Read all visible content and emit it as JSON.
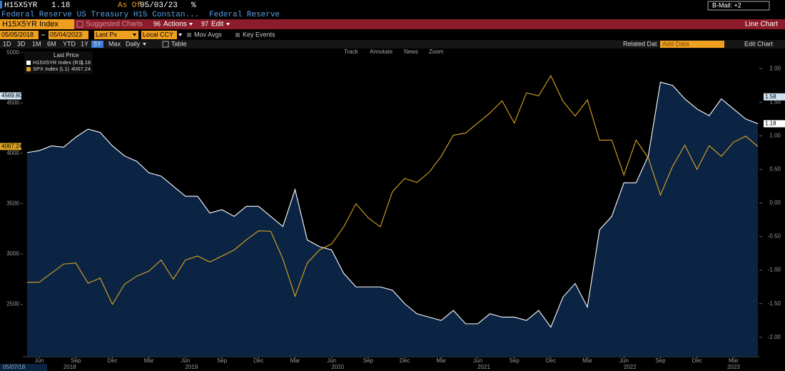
{
  "header": {
    "ticker": "H15X5YR",
    "last": "1.18",
    "as_of_label": "As Of",
    "as_of_date": "05/03/23",
    "unit": "%",
    "description": "Federal Reserve US Treasury H15 Constan...",
    "source": "Federal Reserve",
    "mail": "B-Mail: +2"
  },
  "command_bar": {
    "security": "H15X5YR Index",
    "suggested": "Suggested Charts",
    "actions_key": "96",
    "actions": "Actions",
    "edit_key": "97",
    "edit": "Edit",
    "chart_type": "Line Chart"
  },
  "range_bar": {
    "start": "05/05/2018",
    "end": "05/04/2023",
    "field": "Last Px",
    "currency": "Local CCY",
    "mov_avgs": "Mov Avgs",
    "key_events": "Key Events"
  },
  "period_bar": {
    "periods": [
      "1D",
      "3D",
      "1M",
      "6M",
      "YTD",
      "1Y",
      "5Y",
      "Max"
    ],
    "selected": "5Y",
    "frequency": "Daily",
    "table": "Table",
    "related": "Related Dat",
    "add_data": "Add Data",
    "edit_chart": "Edit Chart"
  },
  "chart_tools": [
    "Track",
    "Annotate",
    "News",
    "Zoom"
  ],
  "chart_data": {
    "type": "line",
    "legend_title": "Last Price",
    "start_label": "05/07/18",
    "x": [
      "2018-05",
      "2018-06",
      "2018-07",
      "2018-08",
      "2018-09",
      "2018-10",
      "2018-11",
      "2018-12",
      "2019-01",
      "2019-02",
      "2019-03",
      "2019-04",
      "2019-05",
      "2019-06",
      "2019-07",
      "2019-08",
      "2019-09",
      "2019-10",
      "2019-11",
      "2019-12",
      "2020-01",
      "2020-02",
      "2020-03",
      "2020-04",
      "2020-05",
      "2020-06",
      "2020-07",
      "2020-08",
      "2020-09",
      "2020-10",
      "2020-11",
      "2020-12",
      "2021-01",
      "2021-02",
      "2021-03",
      "2021-04",
      "2021-05",
      "2021-06",
      "2021-07",
      "2021-08",
      "2021-09",
      "2021-10",
      "2021-11",
      "2021-12",
      "2022-01",
      "2022-02",
      "2022-03",
      "2022-04",
      "2022-05",
      "2022-06",
      "2022-07",
      "2022-08",
      "2022-09",
      "2022-10",
      "2022-11",
      "2022-12",
      "2023-01",
      "2023-02",
      "2023-03",
      "2023-04",
      "2023-05"
    ],
    "xlim": [
      "2018-05",
      "2023-05"
    ],
    "xticks": [
      {
        "value": "2018-06",
        "label": "Jun"
      },
      {
        "value": "2018-09",
        "label": "Sep"
      },
      {
        "value": "2018-12",
        "label": "Dec"
      },
      {
        "value": "2019-03",
        "label": "Mar"
      },
      {
        "value": "2019-06",
        "label": "Jun"
      },
      {
        "value": "2019-09",
        "label": "Sep"
      },
      {
        "value": "2019-12",
        "label": "Dec"
      },
      {
        "value": "2020-03",
        "label": "Mar"
      },
      {
        "value": "2020-06",
        "label": "Jun"
      },
      {
        "value": "2020-09",
        "label": "Sep"
      },
      {
        "value": "2020-12",
        "label": "Dec"
      },
      {
        "value": "2021-03",
        "label": "Mar"
      },
      {
        "value": "2021-06",
        "label": "Jun"
      },
      {
        "value": "2021-09",
        "label": "Sep"
      },
      {
        "value": "2021-12",
        "label": "Dec"
      },
      {
        "value": "2022-03",
        "label": "Mar"
      },
      {
        "value": "2022-06",
        "label": "Jun"
      },
      {
        "value": "2022-09",
        "label": "Sep"
      },
      {
        "value": "2022-12",
        "label": "Dec"
      },
      {
        "value": "2023-03",
        "label": "Mar"
      }
    ],
    "years": [
      "2018",
      "2019",
      "2020",
      "2021",
      "2022",
      "2023"
    ],
    "ylim": [
      1980,
      5040
    ],
    "yticks": [
      2500,
      3000,
      3500,
      4000,
      4500,
      5000
    ],
    "y2lim": [
      -2.29,
      2.3
    ],
    "y2ticks": [
      {
        "value": 2,
        "label": "2.00"
      },
      {
        "value": 1.5,
        "label": "1.50"
      },
      {
        "value": 1,
        "label": "1.00"
      },
      {
        "value": 0.5,
        "label": "0.50"
      },
      {
        "value": 0,
        "label": "0.00"
      },
      {
        "value": -0.5,
        "label": "-0.50"
      },
      {
        "value": -1,
        "label": "-1.00"
      },
      {
        "value": -1.5,
        "label": "-1.50"
      },
      {
        "value": -2,
        "label": "-2.00"
      }
    ],
    "grid": false,
    "markers": [
      {
        "axis": "y",
        "value": 4569.8,
        "label": "4569.80"
      },
      {
        "axis": "y2",
        "value": 1.58
      }
    ],
    "series": [
      {
        "name": "H15X5YR Index (R1)",
        "color": "#ffffff",
        "fill": "#0c2444",
        "axis": "y2",
        "values": [
          0.75,
          0.78,
          0.85,
          0.83,
          0.98,
          1.1,
          1.05,
          0.85,
          0.7,
          0.62,
          0.45,
          0.4,
          0.25,
          0.1,
          0.1,
          -0.15,
          -0.1,
          -0.2,
          -0.05,
          -0.05,
          -0.2,
          -0.35,
          0.2,
          -0.55,
          -0.65,
          -0.7,
          -1.05,
          -1.25,
          -1.25,
          -1.25,
          -1.3,
          -1.5,
          -1.65,
          -1.7,
          -1.75,
          -1.6,
          -1.8,
          -1.8,
          -1.65,
          -1.7,
          -1.7,
          -1.75,
          -1.6,
          -1.85,
          -1.4,
          -1.2,
          -1.55,
          -0.4,
          -0.2,
          0.3,
          0.3,
          0.7,
          1.8,
          1.75,
          1.55,
          1.4,
          1.3,
          1.55,
          1.4,
          1.25,
          1.18
        ]
      },
      {
        "name": "SPX Index (L1)",
        "color": "#d9a521",
        "values": [
          2720,
          2720,
          2810,
          2900,
          2910,
          2710,
          2760,
          2500,
          2700,
          2780,
          2830,
          2940,
          2750,
          2940,
          2980,
          2920,
          2980,
          3040,
          3140,
          3230,
          3225,
          2950,
          2580,
          2910,
          3040,
          3100,
          3270,
          3500,
          3360,
          3270,
          3620,
          3750,
          3710,
          3810,
          3970,
          4180,
          4200,
          4300,
          4400,
          4520,
          4300,
          4600,
          4570,
          4770,
          4515,
          4370,
          4530,
          4130,
          4130,
          3785,
          4130,
          3955,
          3585,
          3870,
          4080,
          3840,
          4075,
          3970,
          4110,
          4170,
          4067.24
        ]
      }
    ]
  }
}
